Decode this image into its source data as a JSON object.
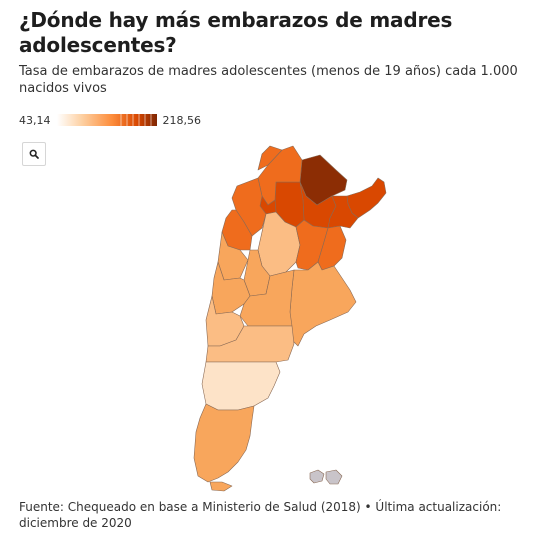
{
  "title": "¿Dónde hay más embarazos de madres adolescentes?",
  "subtitle": "Tasa de embarazos de madres adolescentes (menos de 19 años) cada 1.000 nacidos vivos",
  "legend": {
    "min_label": "43,14",
    "max_label": "218,56",
    "min_value": 43.14,
    "max_value": 218.56,
    "color_low": "#fdd9b5",
    "color_high": "#7f2704",
    "steps": [
      "#fde3c8",
      "#fdd0a2",
      "#fdae6b",
      "#fd8d3c",
      "#f16913",
      "#d94801",
      "#a63603",
      "#7f2704"
    ]
  },
  "zoom": {
    "icon": "search-icon"
  },
  "source": "Fuente: Chequeado en base a Ministerio de Salud (2018) • Última actualización: diciembre de 2020",
  "map": {
    "type": "choropleth",
    "region": "Argentina",
    "colors": {
      "very_high": "#8c2d04",
      "high": "#d94801",
      "mid_high": "#ef6c1d",
      "mid": "#f5893a",
      "mid_low": "#f8a65c",
      "low": "#fbbd84",
      "border": "#8a6a55",
      "islands": "#c9c4c9"
    }
  }
}
